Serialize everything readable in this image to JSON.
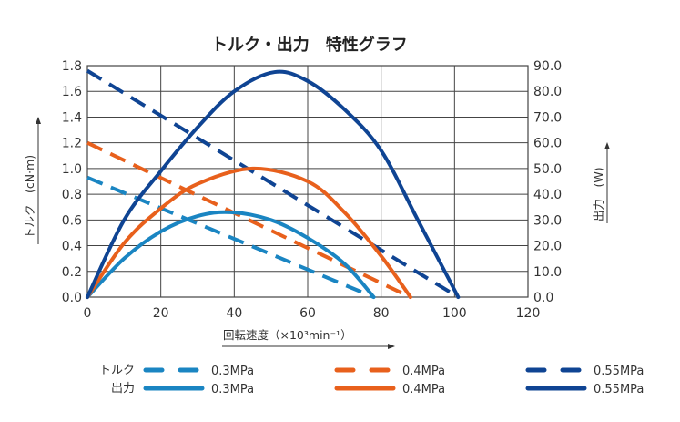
{
  "chart_data": {
    "type": "line",
    "title": "トルク・出力　特性グラフ",
    "xlabel": "回転速度（×10³min⁻¹）",
    "ylabel_left": "トルク　(cN·m)",
    "ylabel_right": "出力　(W)",
    "xlim": [
      0,
      120
    ],
    "ylim_left": [
      0,
      1.8
    ],
    "ylim_right": [
      0,
      90
    ],
    "x_ticks": [
      "0",
      "20",
      "40",
      "60",
      "80",
      "100",
      "120"
    ],
    "y_left_ticks": [
      "0.0",
      "0.2",
      "0.4",
      "0.6",
      "0.8",
      "1.0",
      "1.2",
      "1.4",
      "1.6",
      "1.8"
    ],
    "y_right_ticks": [
      "0.0",
      "10.0",
      "20.0",
      "30.0",
      "40.0",
      "50.0",
      "60.0",
      "70.0",
      "80.0",
      "90.0"
    ],
    "grid": true,
    "legend": {
      "position": "bottom",
      "torque_label": "トルク",
      "power_label": "出力"
    },
    "series": [
      {
        "name": "0.3MPa",
        "kind": "torque",
        "axis": "left",
        "color": "#1a85c2",
        "dashed": true,
        "points": [
          [
            0,
            0.93
          ],
          [
            78,
            0
          ]
        ]
      },
      {
        "name": "0.4MPa",
        "kind": "torque",
        "axis": "left",
        "color": "#e8601c",
        "dashed": true,
        "points": [
          [
            0,
            1.2
          ],
          [
            88,
            0
          ]
        ]
      },
      {
        "name": "0.55MPa",
        "kind": "torque",
        "axis": "left",
        "color": "#0f4493",
        "dashed": true,
        "points": [
          [
            0,
            1.76
          ],
          [
            101,
            0
          ]
        ]
      },
      {
        "name": "0.3MPa",
        "kind": "power",
        "axis": "right",
        "color": "#1a85c2",
        "dashed": false,
        "points": [
          [
            0,
            0
          ],
          [
            10,
            15
          ],
          [
            20,
            25.5
          ],
          [
            30,
            31.5
          ],
          [
            39,
            33
          ],
          [
            50,
            30
          ],
          [
            60,
            23
          ],
          [
            70,
            13
          ],
          [
            78,
            0
          ]
        ]
      },
      {
        "name": "0.4MPa",
        "kind": "power",
        "axis": "right",
        "color": "#e8601c",
        "dashed": false,
        "points": [
          [
            0,
            0
          ],
          [
            10,
            21
          ],
          [
            20,
            34.5
          ],
          [
            30,
            44
          ],
          [
            45,
            50
          ],
          [
            60,
            45
          ],
          [
            70,
            33
          ],
          [
            80,
            16
          ],
          [
            88,
            0
          ]
        ]
      },
      {
        "name": "0.55MPa",
        "kind": "power",
        "axis": "right",
        "color": "#0f4493",
        "dashed": false,
        "points": [
          [
            0,
            0
          ],
          [
            10,
            30
          ],
          [
            20,
            49
          ],
          [
            30,
            66
          ],
          [
            40,
            80
          ],
          [
            51,
            87.5
          ],
          [
            60,
            84
          ],
          [
            70,
            73
          ],
          [
            80,
            57
          ],
          [
            90,
            30
          ],
          [
            101,
            0
          ]
        ]
      }
    ]
  }
}
